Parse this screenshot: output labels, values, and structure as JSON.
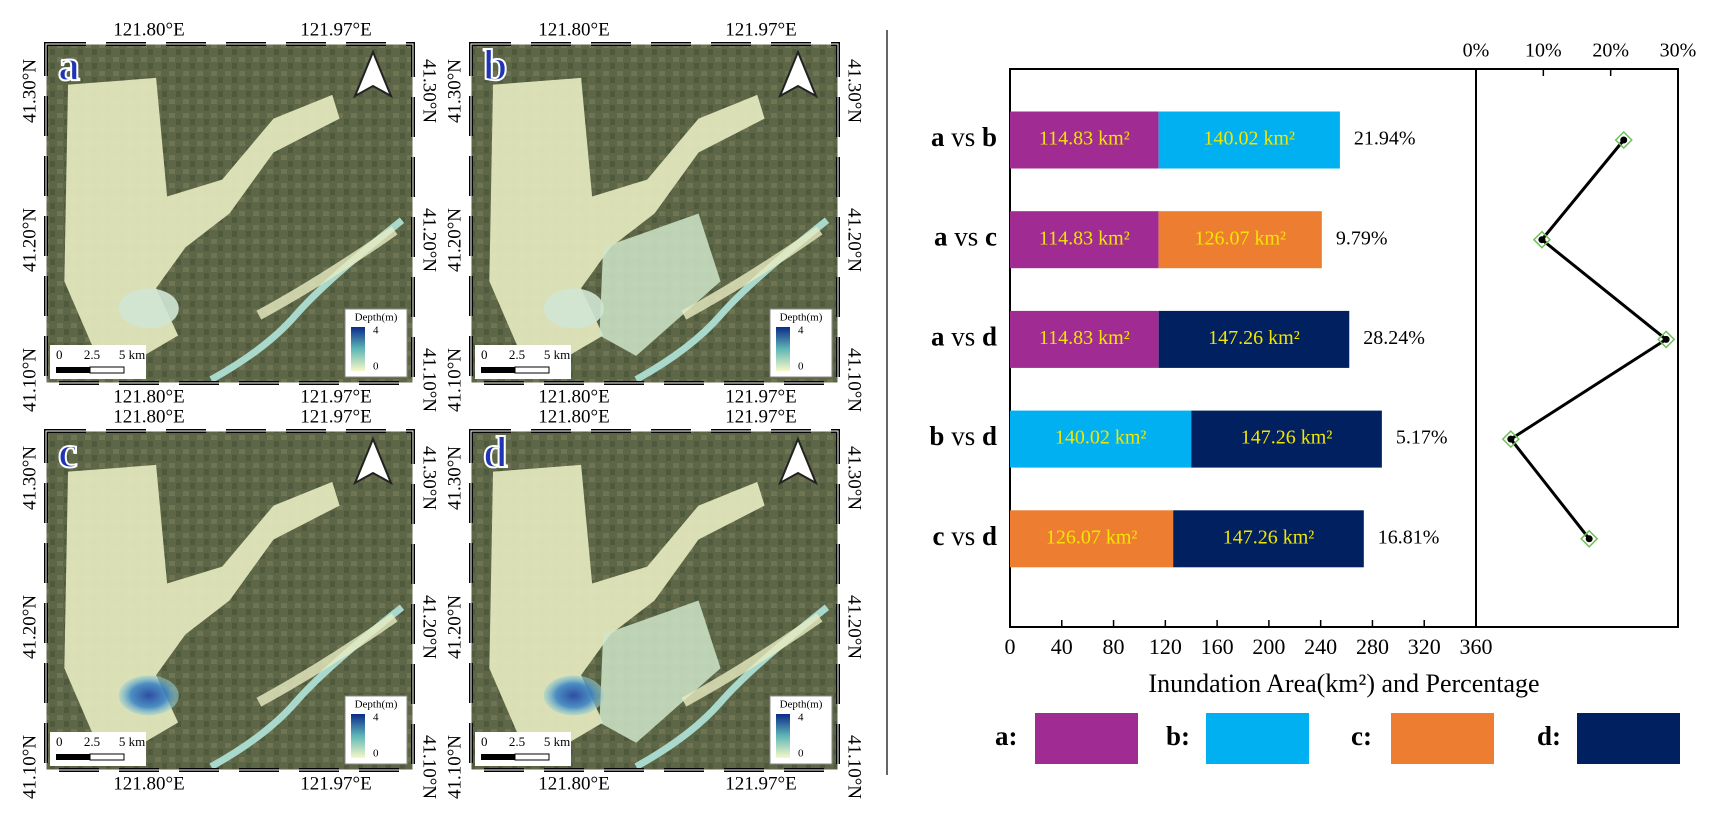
{
  "maps": {
    "panels": [
      "a",
      "b",
      "c",
      "d"
    ],
    "lon_labels": [
      "121.80°E",
      "121.97°E"
    ],
    "lat_labels": [
      "41.30°N",
      "41.20°N",
      "41.10°N"
    ],
    "legend_title": "Depth(m)",
    "legend_ticks": [
      "4",
      "0"
    ],
    "scale_labels": [
      "0",
      "2.5",
      "5 km"
    ]
  },
  "chart_data": {
    "type": "bar",
    "orientation": "horizontal",
    "stacked": true,
    "categories": [
      "a vs b",
      "a vs c",
      "a vs d",
      "b vs d",
      "c vs d"
    ],
    "series": [
      {
        "name": "a:",
        "color": "#a02b93",
        "values": [
          114.83,
          114.83,
          114.83,
          null,
          null
        ],
        "value_labels": [
          "114.83 km²",
          "114.83 km²",
          "114.83 km²",
          null,
          null
        ]
      },
      {
        "name": "b:",
        "color": "#00b0f0",
        "values": [
          140.02,
          null,
          null,
          140.02,
          null
        ],
        "value_labels": [
          "140.02 km²",
          null,
          null,
          "140.02 km²",
          null
        ]
      },
      {
        "name": "c:",
        "color": "#ed7d31",
        "values": [
          null,
          126.07,
          null,
          null,
          126.07
        ],
        "value_labels": [
          null,
          "126.07 km²",
          null,
          null,
          "126.07 km²"
        ]
      },
      {
        "name": "d:",
        "color": "#002060",
        "values": [
          null,
          null,
          147.26,
          147.26,
          147.26
        ],
        "value_labels": [
          null,
          null,
          "147.26 km²",
          "147.26 km²",
          "147.26 km²"
        ]
      }
    ],
    "label_color": "#f2e600",
    "xlim": [
      0,
      360
    ],
    "xticks": [
      0,
      40,
      80,
      120,
      160,
      200,
      240,
      280,
      320,
      360
    ],
    "xlabel": "Inundation Area(km²) and Percentage",
    "percent": {
      "values": [
        21.94,
        9.79,
        28.24,
        5.17,
        16.81
      ],
      "value_labels": [
        "21.94%",
        "9.79%",
        "28.24%",
        "5.17%",
        "16.81%"
      ],
      "color": "#000000",
      "marker_color": "#70c05a"
    },
    "x2lim": [
      0,
      30
    ],
    "x2ticks": [
      {
        "value": 0,
        "label": "0%"
      },
      {
        "value": 10,
        "label": "10%"
      },
      {
        "value": 20,
        "label": "20%"
      },
      {
        "value": 30,
        "label": "30%"
      }
    ]
  }
}
